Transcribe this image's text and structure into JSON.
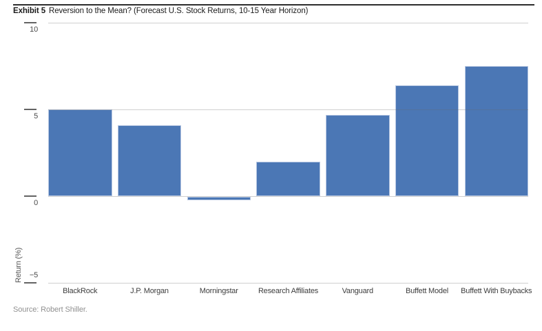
{
  "header": {
    "exhibit_label": "Exhibit 5",
    "title": "Reversion to the Mean? (Forecast U.S. Stock Returns, 10-15 Year Horizon)"
  },
  "source": "Source: Robert Shiller.",
  "colors": {
    "bar_fill": "#4b77b5",
    "bar_border": "#b7c7e2",
    "gridline": "rgba(105,105,105,0.32)",
    "tick": "#636363",
    "text": "#3d3d3d",
    "source_text": "#909090"
  },
  "chart_data": {
    "type": "bar",
    "title": "Reversion to the Mean? (Forecast U.S. Stock Returns, 10-15 Year Horizon)",
    "categories": [
      "BlackRock",
      "J.P. Morgan",
      "Morningstar",
      "Research Affiliates",
      "Vanguard",
      "Buffett Model",
      "Buffett With Buybacks"
    ],
    "values": [
      5.0,
      4.1,
      -0.2,
      2.0,
      4.7,
      6.4,
      7.5
    ],
    "xlabel": "",
    "ylabel": "Return (%)",
    "ylim": [
      -5,
      10
    ],
    "yticks": [
      {
        "value": 10,
        "label": "10"
      },
      {
        "value": 5,
        "label": "5"
      },
      {
        "value": 0,
        "label": "0"
      },
      {
        "value": -5,
        "label": "−5"
      }
    ],
    "grid": true,
    "legend": false,
    "source": "Source: Robert Shiller."
  }
}
